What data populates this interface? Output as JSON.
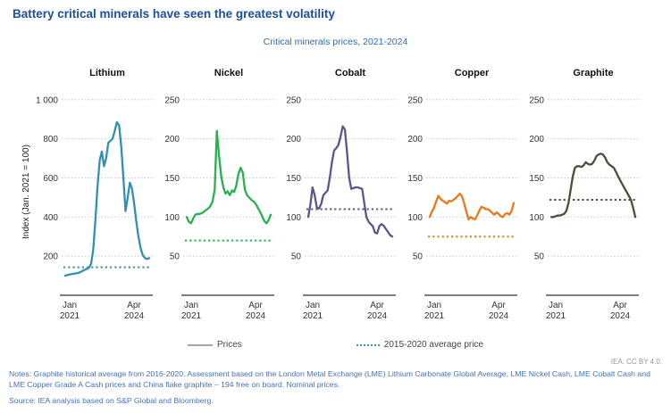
{
  "header": {
    "title": "Battery critical minerals have seen the greatest volatility",
    "subtitle": "Critical minerals prices, 2021-2024"
  },
  "charts": {
    "y_axis_title": "Index (Jan. 2021 = 100)",
    "x_tick_labels": [
      [
        "Jan",
        "2021"
      ],
      [
        "Apr",
        "2024"
      ]
    ],
    "gridline_color": "#c6c6c6",
    "axis_color": "#7f7f7f"
  },
  "legend": {
    "prices_label": "Prices",
    "average_label": "2015-2020 average price",
    "prices_color": "#a6a6a6",
    "average_color": "#3d96b4"
  },
  "footer": {
    "credit": "IEA. CC BY 4.0.",
    "notes": "Notes: Graphite historical average from 2016-2020. Assessment based on the London Metal Exchange (LME) Lithium Carbonate Global Average, LME Nickel Cash, LME Cobalt Cash and LME Copper Grade A Cash prices and China flake graphite – 194 free on board. Nominal prices.",
    "source": "Source: IEA analysis based on S&P Global and Bloomberg."
  },
  "chart_data": [
    {
      "type": "line",
      "title": "Lithium",
      "color": "#3391ad",
      "x": {
        "start": "Jan 2021",
        "end": "Apr 2024",
        "interval": "monthly",
        "n": 40
      },
      "ylim": [
        0,
        1040
      ],
      "yticks": [
        {
          "label": "1 000",
          "value": 1000
        },
        {
          "label": "800",
          "value": 800
        },
        {
          "label": "600",
          "value": 600
        },
        {
          "label": "400",
          "value": 400
        },
        {
          "label": "200",
          "value": 200
        }
      ],
      "average_2015_2020": 143,
      "values": [
        100,
        103,
        106,
        108,
        110,
        112,
        114,
        118,
        124,
        130,
        135,
        140,
        160,
        230,
        380,
        560,
        690,
        735,
        660,
        700,
        780,
        790,
        800,
        840,
        885,
        870,
        760,
        600,
        430,
        500,
        575,
        545,
        470,
        380,
        300,
        240,
        205,
        190,
        185,
        190
      ]
    },
    {
      "type": "line",
      "title": "Nickel",
      "color": "#26b24e",
      "x": {
        "start": "Jan 2021",
        "end": "Apr 2024",
        "interval": "monthly",
        "n": 40
      },
      "ylim": [
        0,
        260
      ],
      "yticks": [
        {
          "label": "250",
          "value": 250
        },
        {
          "label": "200",
          "value": 200
        },
        {
          "label": "150",
          "value": 150
        },
        {
          "label": "100",
          "value": 100
        },
        {
          "label": "50",
          "value": 50
        }
      ],
      "average_2015_2020": 70,
      "values": [
        100,
        94,
        92,
        98,
        103,
        104,
        104,
        105,
        107,
        109,
        111,
        114,
        120,
        135,
        210,
        178,
        152,
        138,
        130,
        133,
        128,
        134,
        132,
        140,
        155,
        163,
        157,
        135,
        128,
        125,
        122,
        120,
        117,
        112,
        107,
        101,
        95,
        92,
        96,
        103
      ]
    },
    {
      "type": "line",
      "title": "Cobalt",
      "color": "#60528f",
      "x": {
        "start": "Jan 2021",
        "end": "Apr 2024",
        "interval": "monthly",
        "n": 40
      },
      "ylim": [
        0,
        260
      ],
      "yticks": [
        {
          "label": "250",
          "value": 250
        },
        {
          "label": "200",
          "value": 200
        },
        {
          "label": "150",
          "value": 150
        },
        {
          "label": "100",
          "value": 100
        },
        {
          "label": "50",
          "value": 50
        }
      ],
      "average_2015_2020": 110,
      "values": [
        100,
        116,
        138,
        128,
        112,
        111,
        117,
        128,
        131,
        134,
        150,
        170,
        185,
        188,
        192,
        203,
        216,
        212,
        183,
        150,
        136,
        137,
        138,
        138,
        137,
        136,
        118,
        100,
        94,
        91,
        88,
        80,
        79,
        88,
        91,
        89,
        85,
        81,
        77,
        75
      ]
    },
    {
      "type": "line",
      "title": "Copper",
      "color": "#e8791e",
      "x": {
        "start": "Jan 2021",
        "end": "Apr 2024",
        "interval": "monthly",
        "n": 40
      },
      "ylim": [
        0,
        260
      ],
      "yticks": [
        {
          "label": "250",
          "value": 250
        },
        {
          "label": "200",
          "value": 200
        },
        {
          "label": "150",
          "value": 150
        },
        {
          "label": "100",
          "value": 100
        },
        {
          "label": "50",
          "value": 50
        }
      ],
      "average_2015_2020": 75,
      "values": [
        100,
        107,
        112,
        120,
        127,
        123,
        121,
        119,
        117,
        121,
        120,
        122,
        124,
        127,
        130,
        126,
        117,
        107,
        97,
        100,
        98,
        97,
        102,
        108,
        113,
        112,
        110,
        110,
        108,
        105,
        103,
        106,
        104,
        101,
        100,
        104,
        105,
        103,
        108,
        118
      ]
    },
    {
      "type": "line",
      "title": "Graphite",
      "color": "#514c36",
      "x": {
        "start": "Jan 2021",
        "end": "Apr 2024",
        "interval": "monthly",
        "n": 40
      },
      "ylim": [
        0,
        260
      ],
      "yticks": [
        {
          "label": "250",
          "value": 250
        },
        {
          "label": "200",
          "value": 200
        },
        {
          "label": "150",
          "value": 150
        },
        {
          "label": "100",
          "value": 100
        },
        {
          "label": "50",
          "value": 50
        }
      ],
      "average_2015_2020": 122,
      "values": [
        100,
        100,
        101,
        102,
        102,
        103,
        104,
        108,
        118,
        135,
        152,
        163,
        165,
        165,
        164,
        166,
        170,
        168,
        167,
        168,
        172,
        178,
        180,
        181,
        180,
        176,
        170,
        167,
        165,
        163,
        158,
        152,
        147,
        142,
        137,
        132,
        127,
        122,
        112,
        100
      ]
    }
  ]
}
